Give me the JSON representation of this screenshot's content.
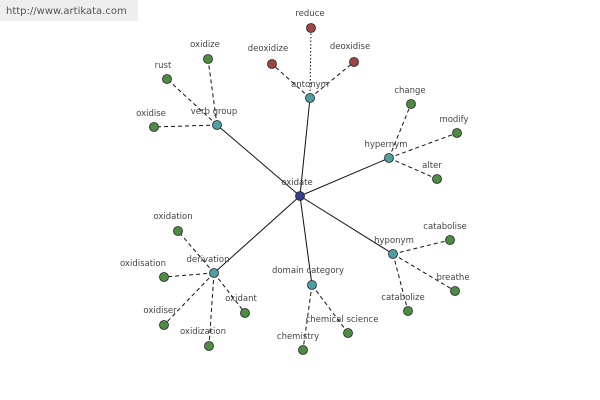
{
  "header": {
    "url": "http://www.artikata.com"
  },
  "nodes": [
    {
      "label": "oxidate"
    },
    {
      "label": "antonym"
    },
    {
      "label": "reduce"
    },
    {
      "label": "deoxidize"
    },
    {
      "label": "deoxidise"
    },
    {
      "label": "verb group"
    },
    {
      "label": "oxidize"
    },
    {
      "label": "rust"
    },
    {
      "label": "oxidise"
    },
    {
      "label": "hypernym"
    },
    {
      "label": "change"
    },
    {
      "label": "modify"
    },
    {
      "label": "alter"
    },
    {
      "label": "derivation"
    },
    {
      "label": "oxidation"
    },
    {
      "label": "oxidisation"
    },
    {
      "label": "oxidiser"
    },
    {
      "label": "oxidization"
    },
    {
      "label": "oxidant"
    },
    {
      "label": "domain category"
    },
    {
      "label": "chemistry"
    },
    {
      "label": "chemical science"
    },
    {
      "label": "hyponym"
    },
    {
      "label": "catabolise"
    },
    {
      "label": "breathe"
    },
    {
      "label": "catabolize"
    }
  ]
}
